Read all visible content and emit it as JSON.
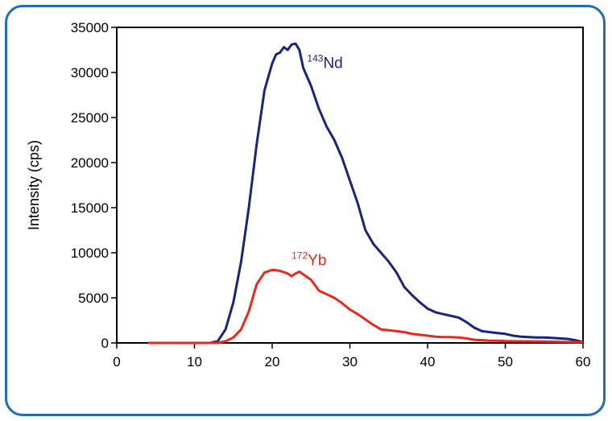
{
  "chart_data": {
    "type": "line",
    "title": "",
    "xlabel": "",
    "ylabel": "Intensity (cps)",
    "xlim": [
      0,
      60
    ],
    "ylim": [
      0,
      35000
    ],
    "xticks": [
      0,
      10,
      20,
      30,
      40,
      50,
      60
    ],
    "yticks": [
      0,
      5000,
      10000,
      15000,
      20000,
      25000,
      30000,
      35000
    ],
    "grid": false,
    "series": [
      {
        "name_mass": "143",
        "name_element": "Nd",
        "color": "#1a237e",
        "label_at": [
          24.5,
          30500
        ],
        "points": [
          [
            4,
            0
          ],
          [
            12,
            0
          ],
          [
            13,
            200
          ],
          [
            14,
            1500
          ],
          [
            15,
            4500
          ],
          [
            16,
            9000
          ],
          [
            17,
            15000
          ],
          [
            18,
            22000
          ],
          [
            19,
            28000
          ],
          [
            20,
            31000
          ],
          [
            20.5,
            32000
          ],
          [
            21,
            32200
          ],
          [
            21.5,
            32800
          ],
          [
            22,
            32500
          ],
          [
            22.5,
            33100
          ],
          [
            23,
            33200
          ],
          [
            23.5,
            32500
          ],
          [
            24,
            30500
          ],
          [
            25,
            28500
          ],
          [
            26,
            26000
          ],
          [
            27,
            24000
          ],
          [
            28,
            22500
          ],
          [
            29,
            20500
          ],
          [
            30,
            18000
          ],
          [
            31,
            15500
          ],
          [
            32,
            12500
          ],
          [
            33,
            11000
          ],
          [
            34,
            10000
          ],
          [
            35,
            9000
          ],
          [
            36,
            7800
          ],
          [
            37,
            6200
          ],
          [
            38,
            5300
          ],
          [
            39,
            4500
          ],
          [
            40,
            3800
          ],
          [
            41,
            3400
          ],
          [
            42,
            3200
          ],
          [
            43,
            3000
          ],
          [
            44,
            2800
          ],
          [
            45,
            2300
          ],
          [
            46,
            1700
          ],
          [
            47,
            1300
          ],
          [
            48,
            1200
          ],
          [
            49,
            1100
          ],
          [
            50,
            1000
          ],
          [
            51,
            800
          ],
          [
            52,
            700
          ],
          [
            53,
            650
          ],
          [
            54,
            600
          ],
          [
            55,
            600
          ],
          [
            56,
            550
          ],
          [
            57,
            500
          ],
          [
            58,
            450
          ],
          [
            59,
            300
          ],
          [
            60,
            100
          ]
        ]
      },
      {
        "name_mass": "172",
        "name_element": "Yb",
        "color": "#e8291c",
        "label_at": [
          22.5,
          8600
        ],
        "points": [
          [
            4,
            0
          ],
          [
            13,
            0
          ],
          [
            14,
            200
          ],
          [
            15,
            600
          ],
          [
            16,
            1500
          ],
          [
            17,
            3500
          ],
          [
            18,
            6500
          ],
          [
            19,
            7800
          ],
          [
            20,
            8100
          ],
          [
            21,
            8000
          ],
          [
            22,
            7700
          ],
          [
            22.5,
            7400
          ],
          [
            23,
            7700
          ],
          [
            23.5,
            7900
          ],
          [
            24,
            7600
          ],
          [
            25,
            7000
          ],
          [
            26,
            5800
          ],
          [
            27,
            5400
          ],
          [
            28,
            5000
          ],
          [
            29,
            4400
          ],
          [
            30,
            3700
          ],
          [
            31,
            3200
          ],
          [
            32,
            2600
          ],
          [
            33,
            2000
          ],
          [
            34,
            1500
          ],
          [
            35,
            1400
          ],
          [
            36,
            1300
          ],
          [
            37,
            1200
          ],
          [
            38,
            1000
          ],
          [
            39,
            900
          ],
          [
            40,
            800
          ],
          [
            41,
            700
          ],
          [
            42,
            650
          ],
          [
            43,
            650
          ],
          [
            44,
            600
          ],
          [
            45,
            500
          ],
          [
            46,
            350
          ],
          [
            47,
            300
          ],
          [
            48,
            250
          ],
          [
            49,
            250
          ],
          [
            50,
            200
          ],
          [
            52,
            180
          ],
          [
            55,
            150
          ],
          [
            58,
            100
          ],
          [
            60,
            80
          ]
        ]
      }
    ]
  }
}
